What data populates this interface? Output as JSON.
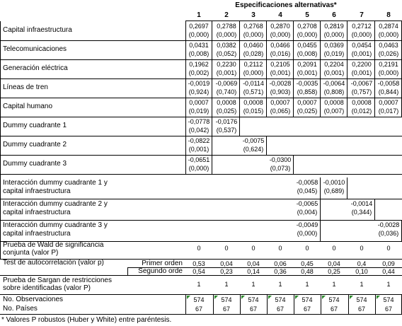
{
  "header": {
    "title": "Especificaciones alternativas*",
    "columns": [
      "1",
      "2",
      "3",
      "4",
      "5",
      "6",
      "7",
      "8"
    ]
  },
  "rows": [
    {
      "label": [
        "Capital infraestructura"
      ],
      "values": [
        "0,2697",
        "0,2788",
        "0,2768",
        "0,2870",
        "0,2708",
        "0,2819",
        "0,2712",
        "0,2874"
      ],
      "pvalues": [
        "(0,000)",
        "(0,000)",
        "(0,000)",
        "(0,000)",
        "(0,000)",
        "(0,000)",
        "(0,000)",
        "(0,000)"
      ]
    },
    {
      "label": [
        "Telecomunicaciones"
      ],
      "values": [
        "0,0431",
        "0,0382",
        "0,0460",
        "0,0466",
        "0,0455",
        "0,0369",
        "0,0454",
        "0,0463"
      ],
      "pvalues": [
        "(0,008)",
        "(0,052)",
        "(0,028)",
        "(0,016)",
        "(0,008)",
        "(0,019)",
        "(0,001)",
        "(0,026)"
      ]
    },
    {
      "label": [
        "Generación eléctrica"
      ],
      "values": [
        "0,1962",
        "0,2230",
        "0,2112",
        "0,2105",
        "0,2091",
        "0,2204",
        "0,2200",
        "0,2191"
      ],
      "pvalues": [
        "(0,002)",
        "(0,001)",
        "(0,000)",
        "(0,001)",
        "(0,001)",
        "(0,001)",
        "(0,001)",
        "(0,000)"
      ]
    },
    {
      "label": [
        "Líneas de tren"
      ],
      "values": [
        "-0,0019",
        "-0,0069",
        "-0,0114",
        "-0,0028",
        "-0,0035",
        "-0,0064",
        "-0,0067",
        "-0,0058"
      ],
      "pvalues": [
        "(0,924)",
        "(0,740)",
        "(0,571)",
        "(0,903)",
        "(0,858)",
        "(0,808)",
        "(0,757)",
        "(0,844)"
      ]
    },
    {
      "label": [
        "Capital humano"
      ],
      "values": [
        "0,0007",
        "0,0008",
        "0,0008",
        "0,0007",
        "0,0007",
        "0,0008",
        "0,0008",
        "0,0007"
      ],
      "pvalues": [
        "(0,019)",
        "(0,025)",
        "(0,015)",
        "(0,065)",
        "(0,025)",
        "(0,007)",
        "(0,012)",
        "(0,017)"
      ]
    },
    {
      "label": [
        "Dummy cuadrante 1"
      ],
      "values": [
        "-0,0778",
        "-0,0176",
        "",
        "",
        "",
        "",
        "",
        ""
      ],
      "pvalues": [
        "(0,042)",
        "(0,537)",
        "",
        "",
        "",
        "",
        "",
        ""
      ]
    },
    {
      "label": [
        "Dummy cuadrante 2"
      ],
      "values": [
        "-0,0822",
        "",
        "-0,0075",
        "",
        "",
        "",
        "",
        ""
      ],
      "pvalues": [
        "(0,001)",
        "",
        "(0,624)",
        "",
        "",
        "",
        "",
        ""
      ]
    },
    {
      "label": [
        "Dummy cuadrante 3"
      ],
      "values": [
        "-0,0651",
        "",
        "",
        "-0,0300",
        "",
        "",
        "",
        ""
      ],
      "pvalues": [
        "(0,000)",
        "",
        "",
        "(0,073)",
        "",
        "",
        "",
        ""
      ]
    },
    {
      "label": [
        "Interacción dummy cuadrante 1 y",
        "capital infraestructura"
      ],
      "values": [
        "",
        "",
        "",
        "",
        "-0,0058",
        "-0,0010",
        "",
        ""
      ],
      "pvalues": [
        "",
        "",
        "",
        "",
        "(0,045)",
        "(0,689)",
        "",
        ""
      ]
    },
    {
      "label": [
        "Interacción dummy cuadrante 2 y",
        "capital infraestructura"
      ],
      "values": [
        "",
        "",
        "",
        "",
        "-0,0065",
        "",
        "-0,0014",
        ""
      ],
      "pvalues": [
        "",
        "",
        "",
        "",
        "(0,004)",
        "",
        "(0,344)",
        ""
      ]
    },
    {
      "label": [
        "Interacción dummy cuadrante 3 y",
        "capital infraestructura"
      ],
      "values": [
        "",
        "",
        "",
        "",
        "-0,0049",
        "",
        "",
        "-0,0028"
      ],
      "pvalues": [
        "",
        "",
        "",
        "",
        "(0,000)",
        "",
        "",
        "(0,036)"
      ]
    }
  ],
  "wald": {
    "label": [
      "Prueba de Wald de significancia",
      "conjunta (valor P)"
    ],
    "values": [
      "0",
      "0",
      "0",
      "0",
      "0",
      "0",
      "0",
      "0"
    ]
  },
  "autocorr": {
    "label": "Test de autocorrelación (valor p)",
    "sub": [
      {
        "label": "Primer orden",
        "values": [
          "0,53",
          "0,04",
          "0,04",
          "0,06",
          "0,45",
          "0,04",
          "0,4",
          "0,09"
        ]
      },
      {
        "label": "Segundo orde",
        "values": [
          "0,54",
          "0,23",
          "0,14",
          "0,36",
          "0,48",
          "0,25",
          "0,10",
          "0,44"
        ]
      }
    ]
  },
  "sargan": {
    "label": [
      "Prueba de Sargan de restricciones",
      "sobre identificadas (valor P)"
    ],
    "values": [
      "1",
      "1",
      "1",
      "1",
      "1",
      "1",
      "1",
      "1"
    ]
  },
  "obs": {
    "label": "No. Observaciones",
    "values": [
      "574",
      "574",
      "574",
      "574",
      "574",
      "574",
      "574",
      "574"
    ]
  },
  "paises": {
    "label": "No. Países",
    "values": [
      "67",
      "67",
      "67",
      "67",
      "67",
      "67",
      "67",
      "67"
    ]
  },
  "footnote": "* Valores P robustos (Huber y White) entre paréntesis.",
  "colors": {
    "marker": "#2e8b2e",
    "border": "#000000"
  }
}
